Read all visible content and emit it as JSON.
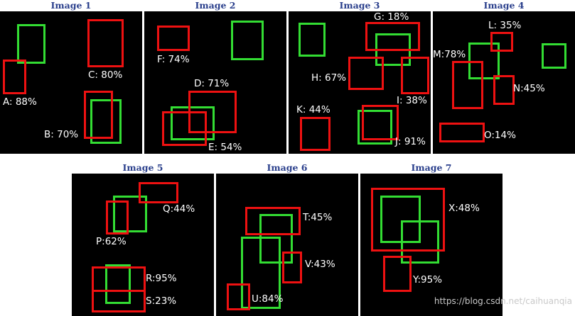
{
  "colors": {
    "background": "#ffffff",
    "panel": "#000000",
    "title": "#2a3f8c",
    "ground_truth_box": "#33dd33",
    "prediction_box": "#ee1111",
    "label": "#ffffff"
  },
  "panels": [
    {
      "title": "Image 1",
      "boxes": [
        {
          "color": "green"
        },
        {
          "color": "red",
          "label": "A: 88%"
        },
        {
          "color": "red",
          "label": "C: 80%"
        },
        {
          "color": "green"
        },
        {
          "color": "red",
          "label": "B: 70%"
        }
      ]
    },
    {
      "title": "Image 2",
      "boxes": [
        {
          "color": "red",
          "label": "F: 74%"
        },
        {
          "color": "green"
        },
        {
          "color": "green"
        },
        {
          "color": "red",
          "label": "E: 54%"
        },
        {
          "color": "red",
          "label": "D: 71%"
        }
      ]
    },
    {
      "title": "Image 3",
      "boxes": [
        {
          "color": "green"
        },
        {
          "color": "green"
        },
        {
          "color": "red",
          "label": "G: 18%"
        },
        {
          "color": "red",
          "label": "H: 67%"
        },
        {
          "color": "red",
          "label": "I: 38%"
        },
        {
          "color": "red",
          "label": "K: 44%"
        },
        {
          "color": "green"
        },
        {
          "color": "red",
          "label": "J: 91%"
        }
      ]
    },
    {
      "title": "Image 4",
      "boxes": [
        {
          "color": "green"
        },
        {
          "color": "red",
          "label": "L: 35%"
        },
        {
          "color": "red",
          "label": "M:78%"
        },
        {
          "color": "red",
          "label": "N:45%"
        },
        {
          "color": "green"
        },
        {
          "color": "red",
          "label": "O:14%"
        }
      ]
    },
    {
      "title": "Image 5",
      "boxes": [
        {
          "color": "green"
        },
        {
          "color": "red",
          "label": "P:62%"
        },
        {
          "color": "red",
          "label": "Q:44%"
        },
        {
          "color": "green"
        },
        {
          "color": "red",
          "label": "R:95%"
        },
        {
          "color": "red",
          "label": "S:23%"
        }
      ]
    },
    {
      "title": "Image 6",
      "boxes": [
        {
          "color": "green"
        },
        {
          "color": "red",
          "label": "T:45%"
        },
        {
          "color": "green"
        },
        {
          "color": "red",
          "label": "V:43%"
        },
        {
          "color": "red",
          "label": "U:84%"
        }
      ]
    },
    {
      "title": "Image 7",
      "boxes": [
        {
          "color": "green"
        },
        {
          "color": "green"
        },
        {
          "color": "red",
          "label": "X:48%"
        },
        {
          "color": "red",
          "label": "Y:95%"
        }
      ]
    }
  ],
  "watermark": "https://blog.csdn.net/caihuanqia"
}
